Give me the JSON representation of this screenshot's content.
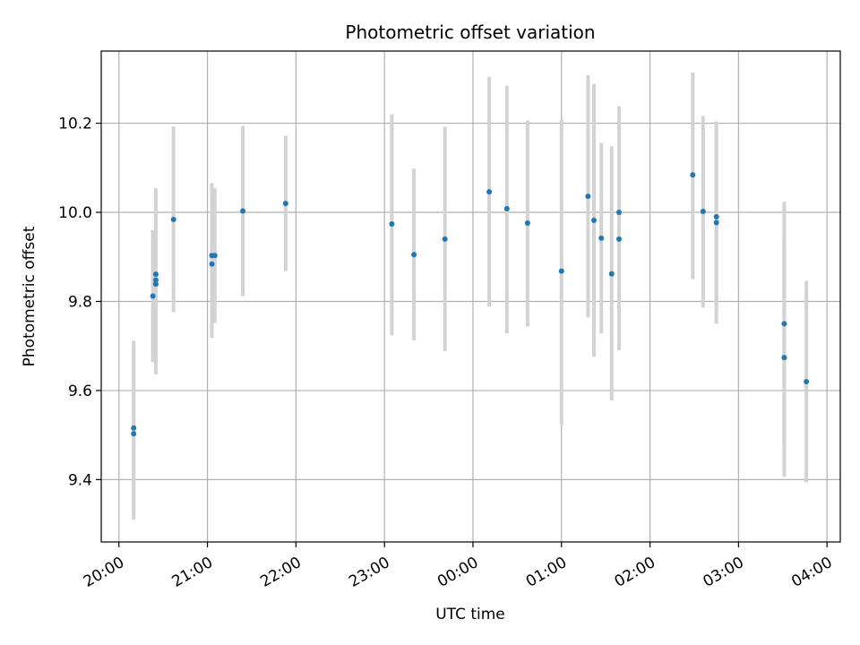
{
  "chart_data": {
    "type": "scatter",
    "title": "Photometric offset variation",
    "xlabel": "UTC time",
    "ylabel": "Photometric offset",
    "x_ticks": [
      "20:00",
      "21:00",
      "22:00",
      "23:00",
      "00:00",
      "01:00",
      "02:00",
      "03:00",
      "04:00"
    ],
    "y_ticks": [
      "9.4",
      "9.6",
      "9.8",
      "10.0",
      "10.2"
    ],
    "xlim": [
      "19:48",
      "04:09"
    ],
    "ylim": [
      9.26,
      10.362
    ],
    "grid": true,
    "marker_color": "#1f77b4",
    "errorbar_color": "#d3d3d3",
    "series": [
      {
        "points": [
          {
            "x": "20:10",
            "y": 9.516,
            "ylo": 9.32,
            "yhi": 9.712
          },
          {
            "x": "20:10",
            "y": 9.503,
            "ylo": 9.31,
            "yhi": 9.695
          },
          {
            "x": "20:23",
            "y": 9.812,
            "ylo": 9.664,
            "yhi": 9.96
          },
          {
            "x": "20:25",
            "y": 9.861,
            "ylo": 9.668,
            "yhi": 10.054
          },
          {
            "x": "20:25",
            "y": 9.848,
            "ylo": 9.66,
            "yhi": 10.036
          },
          {
            "x": "20:25",
            "y": 9.839,
            "ylo": 9.636,
            "yhi": 10.042
          },
          {
            "x": "20:37",
            "y": 9.984,
            "ylo": 9.776,
            "yhi": 10.192
          },
          {
            "x": "21:03",
            "y": 9.903,
            "ylo": 9.74,
            "yhi": 10.066
          },
          {
            "x": "21:03",
            "y": 9.884,
            "ylo": 9.718,
            "yhi": 10.05
          },
          {
            "x": "21:05",
            "y": 9.903,
            "ylo": 9.752,
            "yhi": 10.054
          },
          {
            "x": "21:24",
            "y": 10.003,
            "ylo": 9.812,
            "yhi": 10.194
          },
          {
            "x": "21:53",
            "y": 10.02,
            "ylo": 9.868,
            "yhi": 10.172
          },
          {
            "x": "23:05",
            "y": 9.974,
            "ylo": 9.724,
            "yhi": 10.22
          },
          {
            "x": "23:20",
            "y": 9.905,
            "ylo": 9.712,
            "yhi": 10.098
          },
          {
            "x": "23:41",
            "y": 9.94,
            "ylo": 9.688,
            "yhi": 10.192
          },
          {
            "x": "00:11",
            "y": 10.046,
            "ylo": 9.788,
            "yhi": 10.304
          },
          {
            "x": "00:23",
            "y": 10.008,
            "ylo": 9.728,
            "yhi": 10.284
          },
          {
            "x": "00:37",
            "y": 9.976,
            "ylo": 9.744,
            "yhi": 10.206
          },
          {
            "x": "01:00",
            "y": 9.868,
            "ylo": 9.524,
            "yhi": 10.208
          },
          {
            "x": "01:18",
            "y": 10.036,
            "ylo": 9.764,
            "yhi": 10.308
          },
          {
            "x": "01:22",
            "y": 9.982,
            "ylo": 9.676,
            "yhi": 10.288
          },
          {
            "x": "01:27",
            "y": 9.942,
            "ylo": 9.728,
            "yhi": 10.156
          },
          {
            "x": "01:34",
            "y": 9.862,
            "ylo": 9.578,
            "yhi": 10.148
          },
          {
            "x": "01:39",
            "y": 9.94,
            "ylo": 9.69,
            "yhi": 10.19
          },
          {
            "x": "01:39",
            "y": 10.0,
            "ylo": 9.762,
            "yhi": 10.238
          },
          {
            "x": "02:29",
            "y": 10.084,
            "ylo": 9.85,
            "yhi": 10.314
          },
          {
            "x": "02:36",
            "y": 10.002,
            "ylo": 9.786,
            "yhi": 10.216
          },
          {
            "x": "02:45",
            "y": 9.99,
            "ylo": 9.78,
            "yhi": 10.2
          },
          {
            "x": "02:45",
            "y": 9.977,
            "ylo": 9.75,
            "yhi": 10.204
          },
          {
            "x": "03:31",
            "y": 9.75,
            "ylo": 9.476,
            "yhi": 10.024
          },
          {
            "x": "03:31",
            "y": 9.674,
            "ylo": 9.406,
            "yhi": 9.942
          },
          {
            "x": "03:46",
            "y": 9.62,
            "ylo": 9.394,
            "yhi": 9.846
          }
        ]
      }
    ]
  }
}
